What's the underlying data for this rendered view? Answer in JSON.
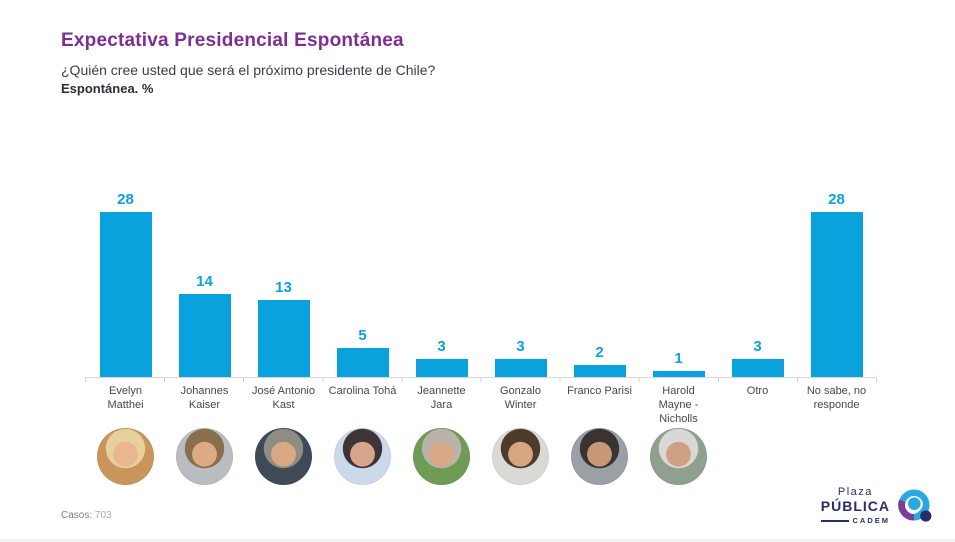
{
  "header": {
    "title": "Expectativa Presidencial Espontánea",
    "subtitle": "¿Quién cree usted que será el próximo presidente de Chile?",
    "note": "Espontánea. %"
  },
  "chart_data": {
    "type": "bar",
    "title": "Expectativa Presidencial Espontánea",
    "ylabel": "%",
    "ylim": [
      0,
      30
    ],
    "grid": false,
    "legend": "none",
    "bar_color": "#0aa2dc",
    "value_label_color": "#0aa2dc",
    "axis_color": "#d8d8dc",
    "categories": [
      "Evelyn Matthei",
      "Johannes Kaiser",
      "José Antonio Kast",
      "Carolina Tohá",
      "Jeannette Jara",
      "Gonzalo Winter",
      "Franco Parisi",
      "Harold Mayne - Nicholls",
      "Otro",
      "No sabe, no responde"
    ],
    "display_labels": [
      "Evelyn\nMatthei",
      "Johannes\nKaiser",
      "José Antonio\nKast",
      "Carolina Tohá",
      "Jeannette\nJara",
      "Gonzalo\nWinter",
      "Franco Parisi",
      "Harold\nMayne -\nNicholls",
      "Otro",
      "No sabe, no\nresponde"
    ],
    "values": [
      28,
      14,
      13,
      5,
      3,
      3,
      2,
      1,
      3,
      28
    ],
    "avatars": [
      {
        "candidate": "Evelyn Matthei",
        "has_photo": true,
        "bg": "#c9955c",
        "hair": "#e6d19b",
        "skin": "#e9b690"
      },
      {
        "candidate": "Johannes Kaiser",
        "has_photo": true,
        "bg": "#b9bcc0",
        "hair": "#8a6f4e",
        "skin": "#dcab81"
      },
      {
        "candidate": "José Antonio Kast",
        "has_photo": true,
        "bg": "#3f4a56",
        "hair": "#8d8d85",
        "skin": "#d8a982"
      },
      {
        "candidate": "Carolina Tohá",
        "has_photo": true,
        "bg": "#ccd9e8",
        "hair": "#3f3437",
        "skin": "#d9a58a"
      },
      {
        "candidate": "Jeannette Jara",
        "has_photo": true,
        "bg": "#6f9b57",
        "hair": "#b9b3ac",
        "skin": "#d8a888"
      },
      {
        "candidate": "Gonzalo Winter",
        "has_photo": true,
        "bg": "#d9d9d7",
        "hair": "#4e3b2a",
        "skin": "#d7a681"
      },
      {
        "candidate": "Franco Parisi",
        "has_photo": true,
        "bg": "#9aa0a6",
        "hair": "#3a3430",
        "skin": "#c79877"
      },
      {
        "candidate": "Harold Mayne - Nicholls",
        "has_photo": true,
        "bg": "#8fa08f",
        "hair": "#d8d8d6",
        "skin": "#cfa184"
      },
      {
        "candidate": "Otro",
        "has_photo": false
      },
      {
        "candidate": "No sabe, no responde",
        "has_photo": false
      }
    ]
  },
  "footer": {
    "cases_label": "Casos:",
    "cases_value": "703",
    "logo": {
      "line1": "Plaza",
      "line2": "PÚBLICA",
      "line3": "CADEM",
      "navy": "#272e66",
      "blue": "#2aa9e0",
      "purple": "#7c3d98"
    }
  },
  "colors": {
    "title_purple": "#7d2e91",
    "bar_blue": "#0aa2dc",
    "text_dark": "#2c2d3a",
    "label_gray": "#46474e"
  }
}
